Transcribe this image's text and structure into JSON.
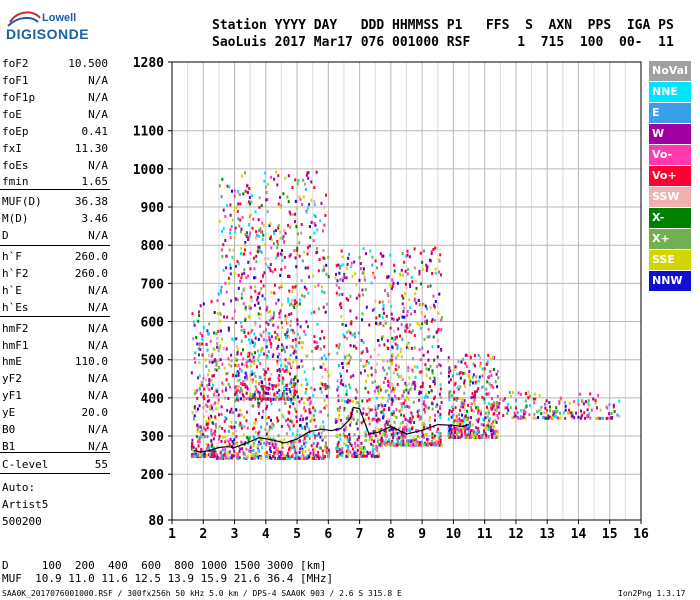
{
  "logo": {
    "line1": "Lowell",
    "line2": "DIGISONDE"
  },
  "header": {
    "line1": "Station YYYY DAY   DDD HHMMSS P1   FFS  S  AXN  PPS  IGA PS",
    "line2": "SaoLuis 2017 Mar17 076 001000 RSF      1  715  100  00-  11"
  },
  "params": [
    {
      "name": "foF2",
      "value": "10.500"
    },
    {
      "name": "foF1",
      "value": "N/A"
    },
    {
      "name": "foF1p",
      "value": "N/A"
    },
    {
      "name": "foE",
      "value": "N/A"
    },
    {
      "name": "foEp",
      "value": "0.41"
    },
    {
      "name": "fxI",
      "value": "11.30"
    },
    {
      "name": "foEs",
      "value": "N/A"
    },
    {
      "name": "fmin",
      "value": "1.65"
    },
    {
      "name": "MUF(D)",
      "value": "36.38"
    },
    {
      "name": "M(D)",
      "value": "3.46"
    },
    {
      "name": "D",
      "value": "N/A"
    },
    {
      "name": "h`F",
      "value": "260.0"
    },
    {
      "name": "h`F2",
      "value": "260.0"
    },
    {
      "name": "h`E",
      "value": "N/A"
    },
    {
      "name": "h`Es",
      "value": "N/A"
    },
    {
      "name": "hmF2",
      "value": "N/A"
    },
    {
      "name": "hmF1",
      "value": "N/A"
    },
    {
      "name": "hmE",
      "value": "110.0"
    },
    {
      "name": "yF2",
      "value": "N/A"
    },
    {
      "name": "yF1",
      "value": "N/A"
    },
    {
      "name": "yE",
      "value": "20.0"
    },
    {
      "name": "B0",
      "value": "N/A"
    },
    {
      "name": "B1",
      "value": "N/A"
    },
    {
      "name": "C-level",
      "value": "55"
    }
  ],
  "aux": {
    "line1": "Auto:",
    "line2": "Artist5",
    "line3": "500200"
  },
  "bottom": {
    "d_row": "D     100  200  400  600  800 1000 1500 3000 [km]",
    "muf_row": "MUF  10.9 11.0 11.6 12.5 13.9 15.9 21.6 36.4 [MHz]"
  },
  "footer": {
    "left": "SAA0K_2017076001000.RSF / 300fx256h 50 kHz 5.0 km / DPS-4 SAA0K 903 / 2.6 S 315.8 E",
    "right": "Ion2Png 1.3.17"
  },
  "legend": [
    {
      "label": "NoVal",
      "color": "#a0a0a0"
    },
    {
      "label": "NNE",
      "color": "#00e5ff"
    },
    {
      "label": "E",
      "color": "#3a9ee8"
    },
    {
      "label": "W",
      "color": "#a000a0"
    },
    {
      "label": "Vo-",
      "color": "#ff3ab0"
    },
    {
      "label": "Vo+",
      "color": "#ff0030"
    },
    {
      "label": "SSW",
      "color": "#f0b0b0"
    },
    {
      "label": "X-",
      "color": "#008000"
    },
    {
      "label": "X+",
      "color": "#70b050"
    },
    {
      "label": "SSE",
      "color": "#d4d400"
    },
    {
      "label": "NNW",
      "color": "#1010d0"
    }
  ],
  "chart_data": {
    "type": "scatter",
    "title": "",
    "xlabel": "",
    "ylabel": "",
    "xlim": [
      1,
      16
    ],
    "ylim": [
      80,
      1280
    ],
    "x_ticks": [
      1,
      2,
      3,
      4,
      5,
      6,
      7,
      8,
      9,
      10,
      11,
      12,
      13,
      14,
      15,
      16
    ],
    "y_ticks": [
      80,
      200,
      300,
      400,
      500,
      600,
      700,
      800,
      900,
      1000,
      1100,
      1280
    ],
    "grid": true,
    "trace": {
      "name": "",
      "x": [
        1.7,
        1.9,
        2.2,
        2.5,
        2.8,
        3.0,
        3.4,
        3.8,
        4.2,
        4.6,
        5.0,
        5.4,
        5.8,
        6.1,
        6.4,
        6.7,
        6.8,
        7.0,
        7.3,
        7.6,
        8.0,
        8.5,
        9.0,
        9.5,
        10.0,
        10.3,
        10.5
      ],
      "y": [
        262,
        258,
        262,
        270,
        272,
        270,
        282,
        296,
        290,
        282,
        292,
        312,
        318,
        314,
        320,
        345,
        375,
        372,
        305,
        310,
        325,
        305,
        315,
        330,
        328,
        325,
        330
      ]
    },
    "clusters": [
      {
        "x": [
          1.6,
          2.4
        ],
        "y": [
          250,
          660
        ],
        "density": 260
      },
      {
        "x": [
          2.4,
          6.0
        ],
        "y": [
          245,
          1000
        ],
        "density": 1100
      },
      {
        "x": [
          3.0,
          5.0
        ],
        "y": [
          400,
          900
        ],
        "density": 350
      },
      {
        "x": [
          6.2,
          7.6
        ],
        "y": [
          250,
          800
        ],
        "density": 420
      },
      {
        "x": [
          7.6,
          9.6
        ],
        "y": [
          280,
          800
        ],
        "density": 650
      },
      {
        "x": [
          9.8,
          11.4
        ],
        "y": [
          300,
          520
        ],
        "density": 420
      },
      {
        "x": [
          11.4,
          15.3
        ],
        "y": [
          350,
          420
        ],
        "density": 180
      }
    ]
  }
}
